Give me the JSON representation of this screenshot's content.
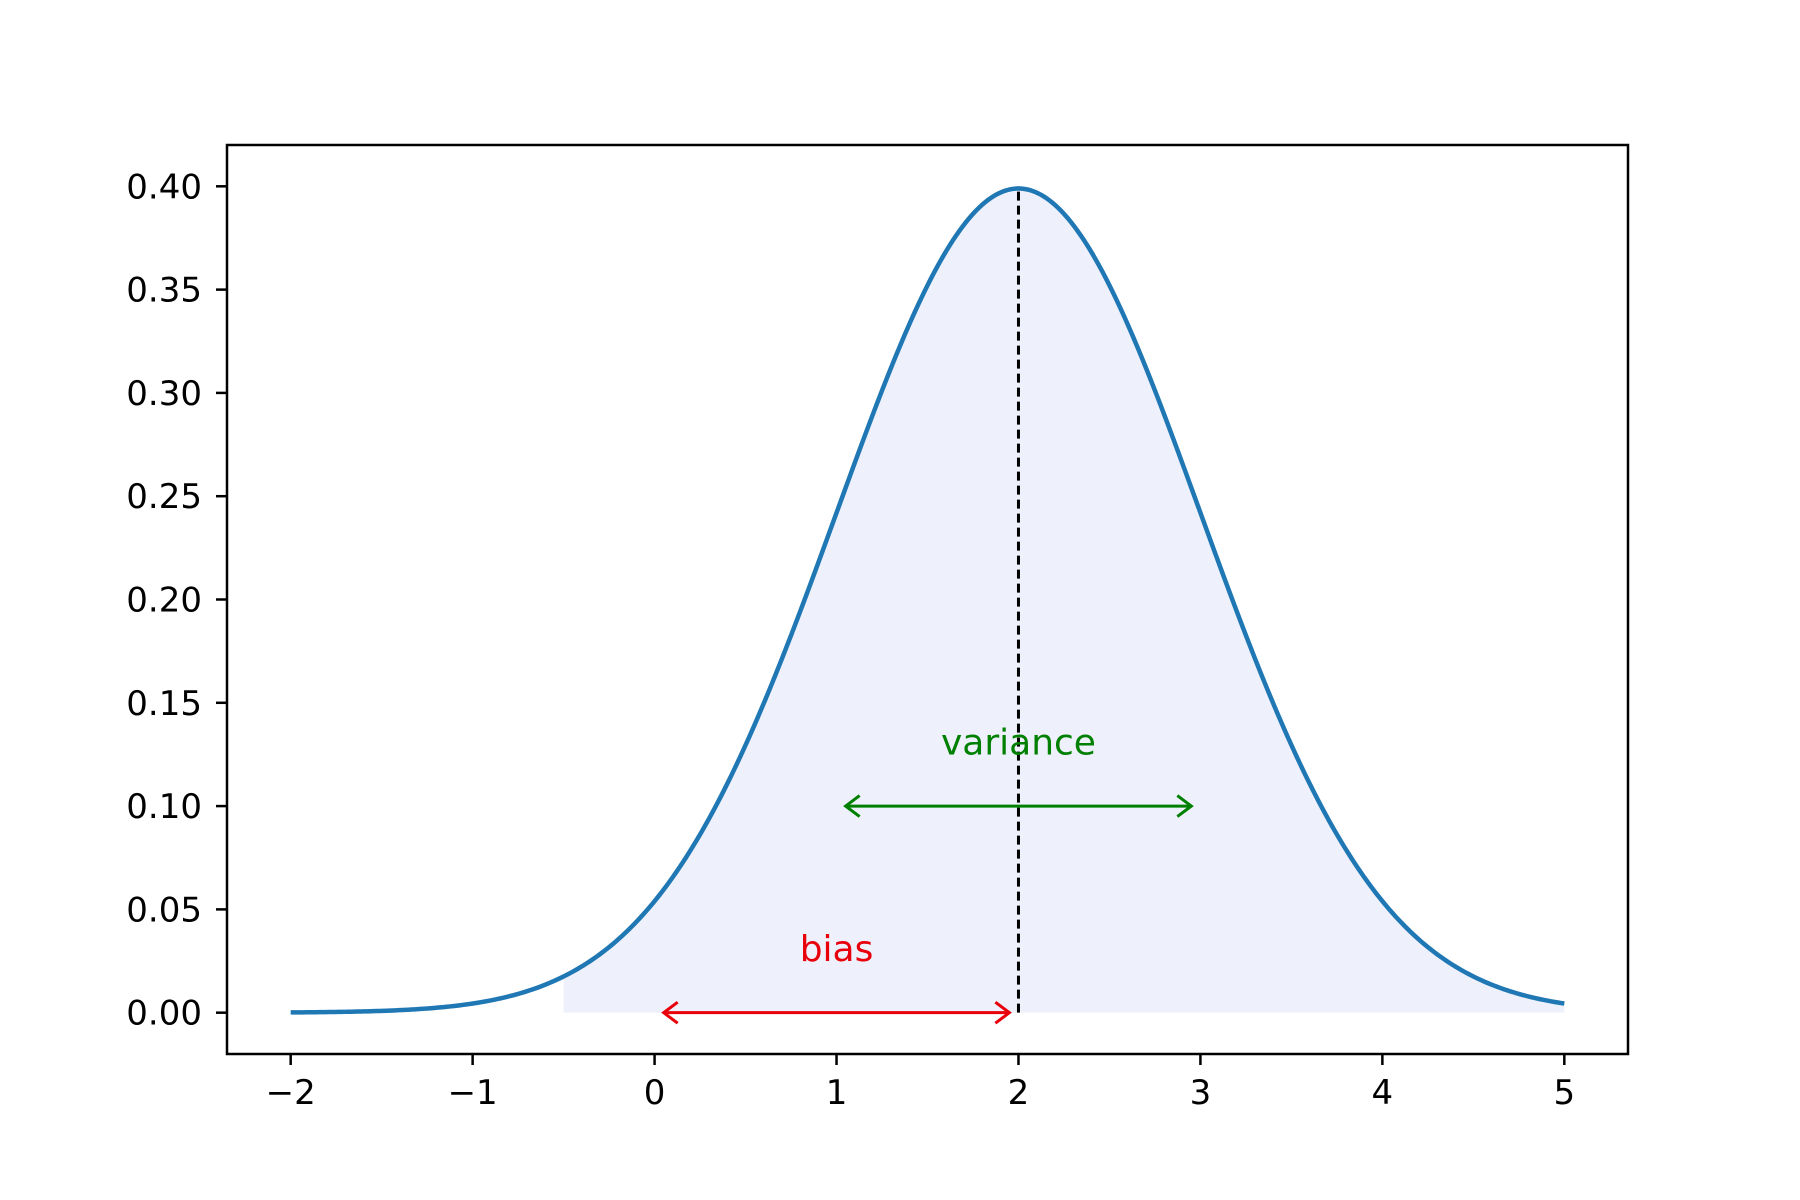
{
  "chart_data": {
    "type": "line",
    "title": "",
    "xlabel": "",
    "ylabel": "",
    "xlim": [
      -2.35,
      5.35
    ],
    "ylim": [
      -0.02,
      0.42
    ],
    "grid": false,
    "legend": "none",
    "x_ticks": [
      -2,
      -1,
      0,
      1,
      2,
      3,
      4,
      5
    ],
    "x_tick_labels": [
      "−2",
      "−1",
      "0",
      "1",
      "2",
      "3",
      "4",
      "5"
    ],
    "y_ticks": [
      0.0,
      0.05,
      0.1,
      0.15,
      0.2,
      0.25,
      0.3,
      0.35,
      0.4
    ],
    "y_tick_labels": [
      "0.00",
      "0.05",
      "0.10",
      "0.15",
      "0.20",
      "0.25",
      "0.30",
      "0.35",
      "0.40"
    ],
    "curve": {
      "distribution": "normal",
      "mean": 2,
      "std": 1,
      "x_range": [
        -2,
        5
      ],
      "color": "#1f77b4"
    },
    "fill": {
      "x_range": [
        -0.5,
        5
      ],
      "color": "#eef0fb"
    },
    "mean_line": {
      "x": 2,
      "y_range": [
        0,
        0.4
      ],
      "style": "dashed",
      "color": "#000000"
    },
    "annotations": [
      {
        "name": "bias",
        "text": "bias",
        "color": "#e8000b",
        "arrow_x": [
          0.05,
          1.95
        ],
        "arrow_y": 0.0,
        "text_x": 1.0,
        "text_y": 0.025
      },
      {
        "name": "variance",
        "text": "variance",
        "color": "#008000",
        "arrow_x": [
          1.05,
          2.95
        ],
        "arrow_y": 0.1,
        "text_x": 2.0,
        "text_y": 0.125
      }
    ]
  }
}
